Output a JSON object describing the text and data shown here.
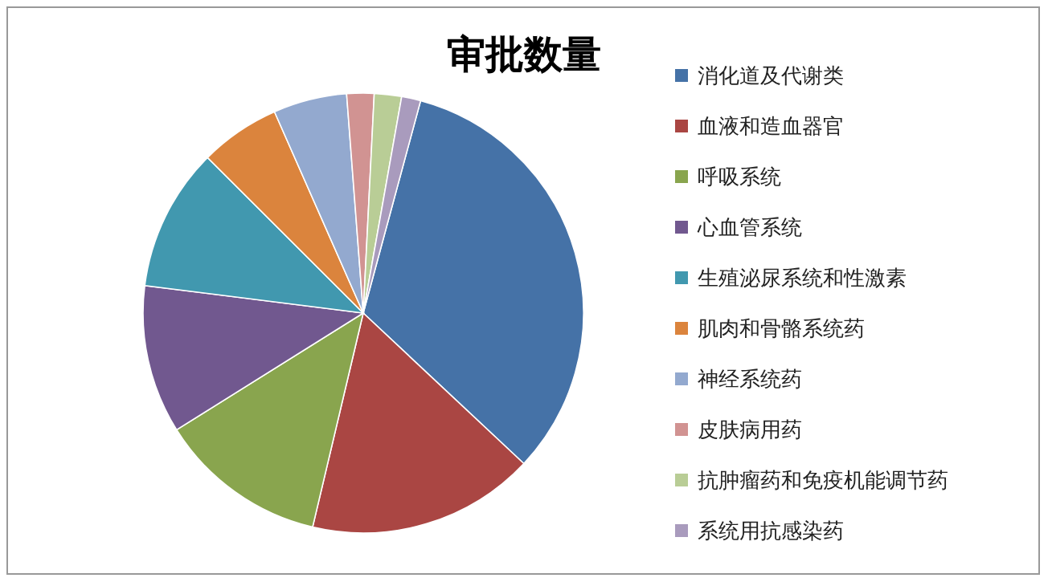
{
  "chart_data": {
    "type": "pie",
    "title": "审批数量",
    "categories": [
      "消化道及代谢类",
      "血液和造血器官",
      "呼吸系统",
      "心血管系统",
      "生殖泌尿系统和性激素",
      "肌肉和骨骼系统药",
      "神经系统药",
      "皮肤病用药",
      "抗肿瘤药和免疫机能调节药",
      "系统用抗感染药"
    ],
    "values": [
      32.8,
      16.7,
      12.4,
      10.9,
      10.5,
      5.9,
      5.4,
      2.0,
      2.0,
      1.4
    ],
    "colors": [
      "#4572a7",
      "#aa4643",
      "#89a54e",
      "#71588f",
      "#4198af",
      "#db843d",
      "#93a9cf",
      "#d19392",
      "#b9cd96",
      "#a99bbd"
    ],
    "legend": "right"
  }
}
